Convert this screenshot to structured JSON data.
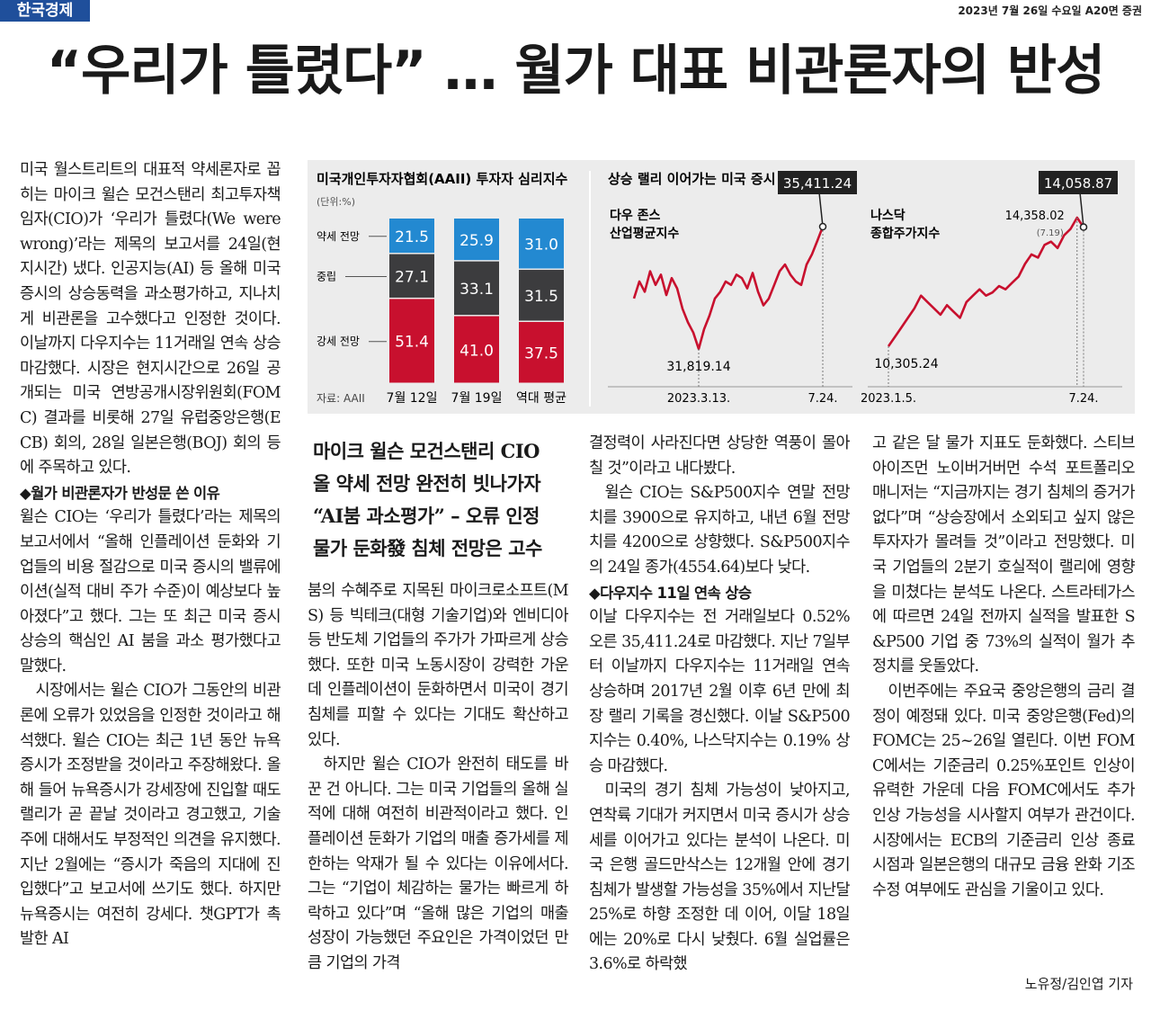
{
  "header": {
    "masthead": "한국경제",
    "dateline": "2023년 7월 26일 수요일 A20면 증권"
  },
  "headline": "“우리가 틀렸다” … 월가 대표 비관론자의 반성",
  "chart_group_title": "상승 랠리 이어가는 미국 증시",
  "chart_data": [
    {
      "type": "bar",
      "stacked": true,
      "title": "미국개인투자자협회(AAII) 투자자 심리지수",
      "unit": "(단위:%)",
      "source": "자료: AAII",
      "categories": [
        "7월 12일",
        "7월 19일",
        "역대 평균"
      ],
      "series": [
        {
          "name": "강세 전망",
          "color": "#c8102e",
          "values": [
            51.4,
            41.0,
            37.5
          ],
          "value_labels": [
            "51.4",
            "41.0",
            "37.5"
          ]
        },
        {
          "name": "중립",
          "color": "#3c3c3e",
          "values": [
            27.1,
            33.1,
            31.5
          ],
          "value_labels": [
            "27.1",
            "33.1",
            "31.5"
          ]
        },
        {
          "name": "약세 전망",
          "color": "#2389d1",
          "values": [
            21.5,
            25.9,
            31.0
          ],
          "value_labels": [
            "21.5",
            "25.9",
            "31.0"
          ]
        }
      ]
    },
    {
      "type": "line",
      "label_lines": [
        "다우 존스",
        "산업평균지수"
      ],
      "x": [
        null,
        null,
        null,
        null,
        null,
        null,
        null,
        null,
        null,
        null,
        null,
        null,
        "2023.3.13.",
        null,
        null,
        null,
        null,
        null,
        null,
        null,
        null,
        null,
        null,
        null,
        null,
        null,
        null,
        null,
        null,
        null,
        null,
        null,
        null,
        null,
        null,
        "7.24."
      ],
      "series": [
        {
          "color": "#c8102e",
          "values": [
            33300,
            33800,
            33500,
            34100,
            33700,
            34000,
            33400,
            33900,
            33600,
            33000,
            32600,
            32300,
            31819.14,
            32400,
            32800,
            33300,
            33500,
            33800,
            33700,
            34000,
            33900,
            33600,
            34050,
            33500,
            33100,
            33300,
            33700,
            34100,
            34300,
            34000,
            33800,
            33700,
            34300,
            34600,
            35000,
            35411.24
          ],
          "value_labels": [
            null,
            null,
            null,
            null,
            null,
            null,
            null,
            null,
            null,
            null,
            null,
            null,
            "31,819.14",
            null,
            null,
            null,
            null,
            null,
            null,
            null,
            null,
            null,
            null,
            null,
            null,
            null,
            null,
            null,
            null,
            null,
            null,
            null,
            null,
            null,
            null,
            "35,411.24"
          ]
        }
      ]
    },
    {
      "type": "line",
      "label_lines": [
        "나스닥",
        "종합주가지수"
      ],
      "annotation": "(7.19)",
      "x": [
        "2023.1.5.",
        null,
        null,
        null,
        null,
        null,
        null,
        null,
        null,
        null,
        null,
        null,
        null,
        null,
        null,
        null,
        null,
        null,
        null,
        null,
        null,
        null,
        null,
        null,
        null,
        null,
        null,
        null,
        null,
        null,
        "7.24."
      ],
      "series": [
        {
          "color": "#c8102e",
          "values": [
            10305.24,
            10600,
            10900,
            11200,
            11500,
            11900,
            11700,
            11500,
            11300,
            11600,
            11400,
            11200,
            11700,
            11900,
            12100,
            11900,
            12000,
            12200,
            12100,
            12300,
            12500,
            12900,
            13200,
            13100,
            13500,
            13600,
            13400,
            13800,
            14000,
            14358.02,
            14058.87
          ],
          "value_labels": [
            "10,305.24",
            null,
            null,
            null,
            null,
            null,
            null,
            null,
            null,
            null,
            null,
            null,
            null,
            null,
            null,
            null,
            null,
            null,
            null,
            null,
            null,
            null,
            null,
            null,
            null,
            null,
            null,
            null,
            null,
            "14,358.02",
            "14,058.87"
          ]
        }
      ]
    }
  ],
  "deck": [
    "마이크 윌슨 모건스탠리 CIO",
    "올 약세 전망 완전히 빗나가자",
    "“AI붐 과소평가” – 오류 인정",
    "물가 둔화發 침체 전망은 고수"
  ],
  "columns": [
    {
      "blocks": [
        {
          "p": "미국 월스트리트의 대표적 약세론자로 꼽히는 마이크 윌슨 모건스탠리 최고투자책임자(CIO)가 ‘우리가 틀렸다(We were wrong)’라는 제목의 보고서를 24일(현지시간) 냈다. 인공지능(AI) 등 올해 미국 증시의 상승동력을 과소평가하고, 지나치게 비관론을 고수했다고 인정한 것이다. 이날까지 다우지수는 11거래일 연속 상승 마감했다. 시장은 현지시간으로 26일 공개되는 미국 연방공개시장위원회(FOMC) 결과를 비롯해 27일 유럽중앙은행(ECB) 회의, 28일 일본은행(BOJ) 회의 등에 주목하고 있다."
        },
        {
          "h": "◆월가 비관론자가 반성문 쓴 이유"
        },
        {
          "p": "윌슨 CIO는 ‘우리가 틀렸다’라는 제목의 보고서에서 “올해 인플레이션 둔화와 기업들의 비용 절감으로 미국 증시의 밸류에이션(실적 대비 주가 수준)이 예상보다 높아졌다”고 했다. 그는 또 최근 미국 증시 상승의 핵심인 AI 붐을 과소 평가했다고 말했다."
        },
        {
          "p": "시장에서는 윌슨 CIO가 그동안의 비관론에 오류가 있었음을 인정한 것이라고 해석했다. 윌슨 CIO는 최근 1년 동안 뉴욕증시가 조정받을 것이라고 주장해왔다. 올해 들어 뉴욕증시가 강세장에 진입할 때도 랠리가 곧 끝날 것이라고 경고했고, 기술주에 대해서도 부정적인 의견을 유지했다. 지난 2월에는 “증시가 죽음의 지대에 진입했다”고 보고서에 쓰기도 했다. 하지만 뉴욕증시는 여전히 강세다. 챗GPT가 촉발한 AI"
        }
      ]
    },
    {
      "blocks": [
        {
          "p": "붐의 수혜주로 지목된 마이크로소프트(MS) 등 빅테크(대형 기술기업)와 엔비디아 등 반도체 기업들의 주가가 가파르게 상승했다. 또한 미국 노동시장이 강력한 가운데 인플레이션이 둔화하면서 미국이 경기 침체를 피할 수 있다는 기대도 확산하고 있다."
        },
        {
          "p": "하지만 윌슨 CIO가 완전히 태도를 바꾼 건 아니다. 그는 미국 기업들의 올해 실적에 대해 여전히 비관적이라고 했다. 인플레이션 둔화가 기업의 매출 증가세를 제한하는 악재가 될 수 있다는 이유에서다. 그는 “기업이 체감하는 물가는 빠르게 하락하고 있다”며 “올해 많은 기업의 매출 성장이 가능했던 주요인은 가격이었던 만큼 기업의 가격"
        }
      ]
    },
    {
      "blocks": [
        {
          "p": "결정력이 사라진다면 상당한 역풍이 몰아칠 것”이라고 내다봤다."
        },
        {
          "p": "윌슨 CIO는 S&P500지수 연말 전망치를 3900으로 유지하고, 내년 6월 전망치를 4200으로 상향했다. S&P500지수의 24일 종가(4554.64)보다 낮다."
        },
        {
          "h": "◆다우지수 11일 연속 상승"
        },
        {
          "p": "이날 다우지수는 전 거래일보다 0.52% 오른 35,411.24로 마감했다. 지난 7일부터 이날까지 다우지수는 11거래일 연속 상승하며 2017년 2월 이후 6년 만에 최장 랠리 기록을 경신했다. 이날 S&P500지수는 0.40%, 나스닥지수는 0.19% 상승 마감했다."
        },
        {
          "p": "미국의 경기 침체 가능성이 낮아지고, 연착륙 기대가 커지면서 미국 증시가 상승세를 이어가고 있다는 분석이 나온다. 미국 은행 골드만삭스는 12개월 안에 경기 침체가 발생할 가능성을 35%에서 지난달 25%로 하향 조정한 데 이어, 이달 18일에는 20%로 다시 낮췄다. 6월 실업률은 3.6%로 하락했"
        }
      ]
    },
    {
      "blocks": [
        {
          "p": "고 같은 달 물가 지표도 둔화했다. 스티브 아이즈먼 노이버거버먼 수석 포트폴리오 매니저는 “지금까지는 경기 침체의 증거가 없다”며 “상승장에서 소외되고 싶지 않은 투자자가 몰려들 것”이라고 전망했다. 미국 기업들의 2분기 호실적이 랠리에 영향을 미쳤다는 분석도 나온다. 스트라테가스에 따르면 24일 전까지 실적을 발표한 S&P500 기업 중 73%의 실적이 월가 추정치를 웃돌았다."
        },
        {
          "p": "이번주에는 주요국 중앙은행의 금리 결정이 예정돼 있다. 미국 중앙은행(Fed)의 FOMC는 25~26일 열린다. 이번 FOMC에서는 기준금리 0.25%포인트 인상이 유력한 가운데 다음 FOMC에서도 추가 인상 가능성을 시사할지 여부가 관건이다. 시장에서는 ECB의 기준금리 인상 종료 시점과 일본은행의 대규모 금융 완화 기조 수정 여부에도 관심을 기울이고 있다."
        }
      ]
    }
  ],
  "byline": "노유정/김인엽 기자"
}
